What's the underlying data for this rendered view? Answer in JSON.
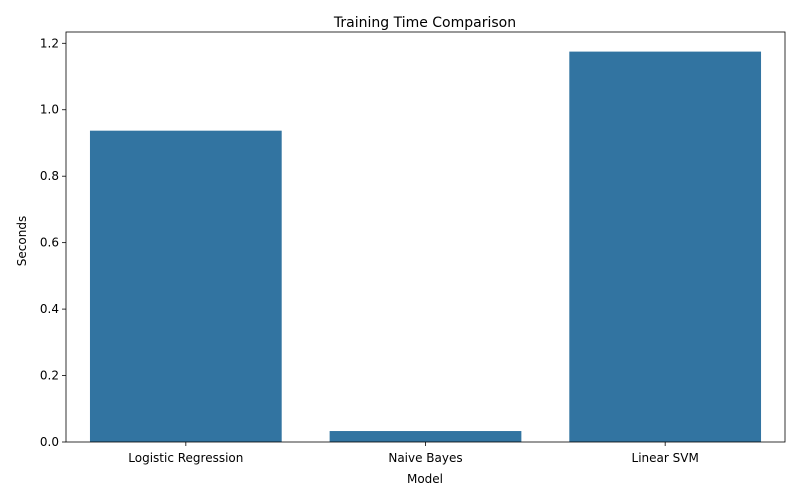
{
  "chart_data": {
    "type": "bar",
    "title": "Training Time Comparison",
    "xlabel": "Model",
    "ylabel": "Seconds",
    "categories": [
      "Logistic Regression",
      "Naive Bayes",
      "Linear SVM"
    ],
    "values": [
      0.937,
      0.033,
      1.175
    ],
    "ylim": [
      0,
      1.234
    ],
    "yticks": [
      0.0,
      0.2,
      0.4,
      0.6,
      0.8,
      1.0,
      1.2
    ],
    "ytick_labels": [
      "0.0",
      "0.2",
      "0.4",
      "0.6",
      "0.8",
      "1.0",
      "1.2"
    ],
    "bar_color": "#3274a1",
    "grid": false,
    "legend": "none"
  }
}
